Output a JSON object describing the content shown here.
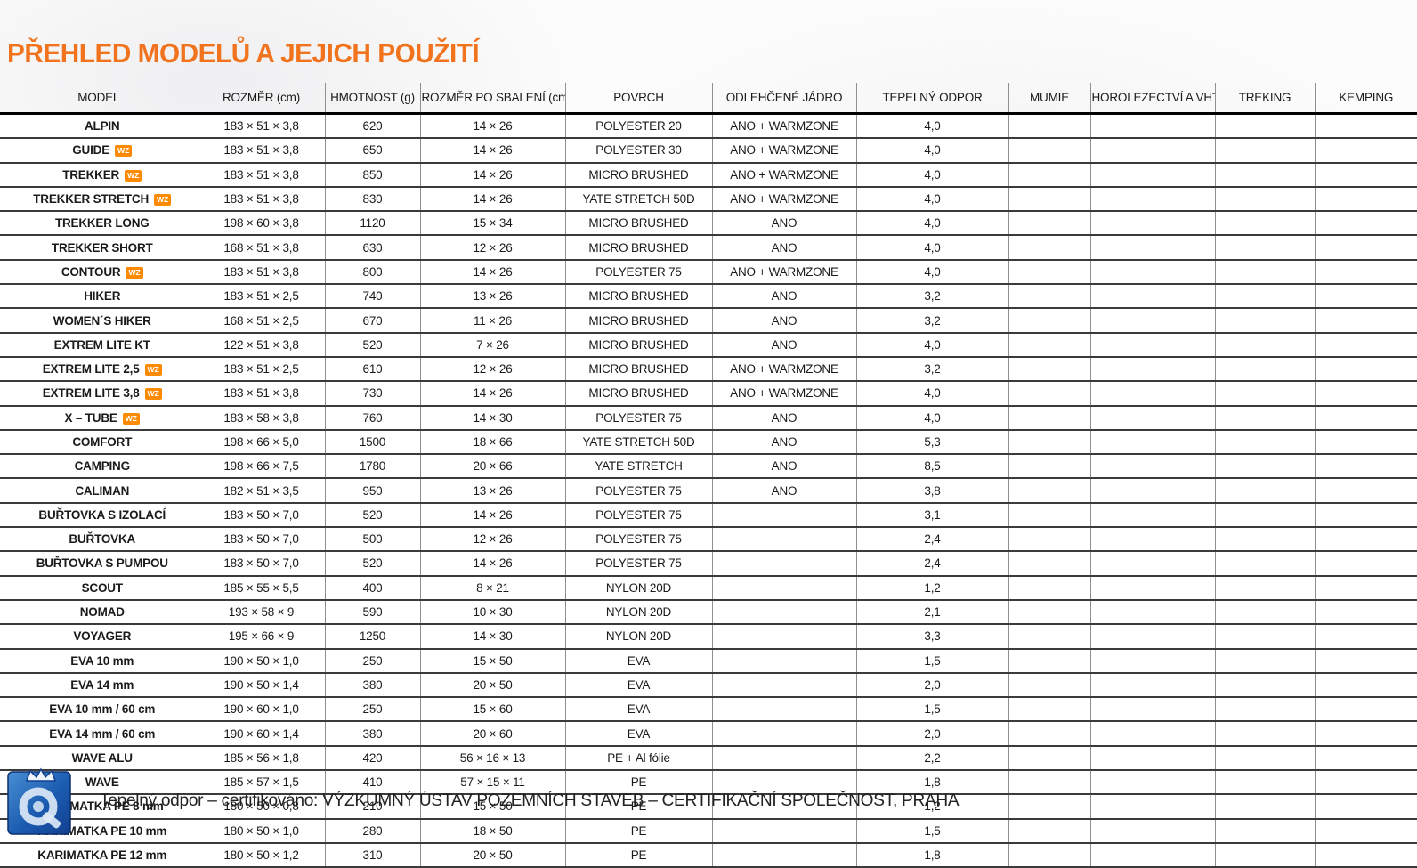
{
  "title": "PŘEHLED MODELŮ A JEJICH POUŽITÍ",
  "colors": {
    "title_orange": "#f2731d",
    "cell_orange": "#fd8a01",
    "row_line": "#3b3b3b",
    "column_line": "#909090",
    "logo_blue_dark": "#123f8f",
    "logo_blue_light": "#4a8fd4"
  },
  "table": {
    "columns": [
      "MODEL",
      "ROZMĚR (cm)",
      "HMOTNOST (g)",
      "ROZMĚR PO SBALENÍ (cm)",
      "POVRCH",
      "ODLEHČENÉ JÁDRO",
      "TEPELNÝ ODPOR",
      "MUMIE",
      "HOROLEZECTVÍ A VHT",
      "TREKING",
      "KEMPING"
    ],
    "wz_badge_label": "WZ",
    "rows": [
      {
        "model": "ALPIN",
        "wz": false,
        "size": "183 × 51 × 3,8",
        "weight": "620",
        "packed": "14 × 26",
        "surface": "POLYESTER 20",
        "core": "ANO + WARMZONE",
        "r_value": "4,0",
        "use": [
          false,
          true,
          true,
          true
        ]
      },
      {
        "model": "GUIDE",
        "wz": true,
        "size": "183 × 51 × 3,8",
        "weight": "650",
        "packed": "14 × 26",
        "surface": "POLYESTER 30",
        "core": "ANO + WARMZONE",
        "r_value": "4,0",
        "use": [
          false,
          true,
          true,
          true
        ]
      },
      {
        "model": "TREKKER",
        "wz": true,
        "size": "183 × 51 × 3,8",
        "weight": "850",
        "packed": "14 × 26",
        "surface": "MICRO BRUSHED",
        "core": "ANO + WARMZONE",
        "r_value": "4,0",
        "use": [
          false,
          true,
          true,
          true
        ]
      },
      {
        "model": "TREKKER STRETCH",
        "wz": true,
        "size": "183 × 51 × 3,8",
        "weight": "830",
        "packed": "14 × 26",
        "surface": "YATE STRETCH 50D",
        "core": "ANO + WARMZONE",
        "r_value": "4,0",
        "use": [
          false,
          true,
          true,
          true
        ]
      },
      {
        "model": "TREKKER LONG",
        "wz": false,
        "size": "198 × 60 × 3,8",
        "weight": "1120",
        "packed": "15 × 34",
        "surface": "MICRO BRUSHED",
        "core": "ANO",
        "r_value": "4,0",
        "use": [
          false,
          true,
          true,
          true
        ]
      },
      {
        "model": "TREKKER SHORT",
        "wz": false,
        "size": "168 × 51 × 3,8",
        "weight": "630",
        "packed": "12 × 26",
        "surface": "MICRO BRUSHED",
        "core": "ANO",
        "r_value": "4,0",
        "use": [
          false,
          true,
          true,
          true
        ]
      },
      {
        "model": "CONTOUR",
        "wz": true,
        "size": "183 × 51 × 3,8",
        "weight": "800",
        "packed": "14 × 26",
        "surface": "POLYESTER 75",
        "core": "ANO + WARMZONE",
        "r_value": "4,0",
        "use": [
          false,
          true,
          true,
          true
        ]
      },
      {
        "model": "HIKER",
        "wz": false,
        "size": "183 × 51 × 2,5",
        "weight": "740",
        "packed": "13 × 26",
        "surface": "MICRO BRUSHED",
        "core": "ANO",
        "r_value": "3,2",
        "use": [
          false,
          true,
          true,
          true
        ]
      },
      {
        "model": "WOMEN´S HIKER",
        "wz": false,
        "size": "168 × 51 × 2,5",
        "weight": "670",
        "packed": "11 × 26",
        "surface": "MICRO BRUSHED",
        "core": "ANO",
        "r_value": "3,2",
        "use": [
          false,
          true,
          true,
          true
        ]
      },
      {
        "model": "EXTREM LITE KT",
        "wz": false,
        "size": "122 × 51 × 3,8",
        "weight": "520",
        "packed": "7 × 26",
        "surface": "MICRO BRUSHED",
        "core": "ANO",
        "r_value": "4,0",
        "use": [
          false,
          true,
          true,
          false
        ]
      },
      {
        "model": "EXTREM LITE 2,5",
        "wz": true,
        "size": "183 × 51 × 2,5",
        "weight": "610",
        "packed": "12 × 26",
        "surface": "MICRO BRUSHED",
        "core": "ANO + WARMZONE",
        "r_value": "3,2",
        "use": [
          true,
          true,
          true,
          false
        ]
      },
      {
        "model": "EXTREM LITE 3,8",
        "wz": true,
        "size": "183 × 51 × 3,8",
        "weight": "730",
        "packed": "14 × 26",
        "surface": "MICRO BRUSHED",
        "core": "ANO + WARMZONE",
        "r_value": "4,0",
        "use": [
          true,
          true,
          true,
          false
        ]
      },
      {
        "model": "X – TUBE",
        "wz": true,
        "size": "183 × 58 × 3,8",
        "weight": "760",
        "packed": "14 × 30",
        "surface": "POLYESTER 75",
        "core": "ANO",
        "r_value": "4,0",
        "use": [
          true,
          true,
          true,
          false
        ]
      },
      {
        "model": "COMFORT",
        "wz": false,
        "size": "198 × 66 × 5,0",
        "weight": "1500",
        "packed": "18 × 66",
        "surface": "YATE STRETCH 50D",
        "core": "ANO",
        "r_value": "5,3",
        "use": [
          false,
          false,
          false,
          true
        ]
      },
      {
        "model": "CAMPING",
        "wz": false,
        "size": "198 × 66 × 7,5",
        "weight": "1780",
        "packed": "20 × 66",
        "surface": "YATE STRETCH",
        "core": "ANO",
        "r_value": "8,5",
        "use": [
          false,
          false,
          false,
          true
        ]
      },
      {
        "model": "CALIMAN",
        "wz": false,
        "size": "182 × 51 × 3,5",
        "weight": "950",
        "packed": "13 × 26",
        "surface": "POLYESTER 75",
        "core": "ANO",
        "r_value": "3,8",
        "use": [
          false,
          false,
          true,
          true
        ]
      },
      {
        "model": "BUŘTOVKA S IZOLACÍ",
        "wz": false,
        "size": "183 × 50 × 7,0",
        "weight": "520",
        "packed": "14 × 26",
        "surface": "POLYESTER 75",
        "core": "",
        "r_value": "3,1",
        "use": [
          false,
          true,
          true,
          true
        ]
      },
      {
        "model": "BUŘTOVKA",
        "wz": false,
        "size": "183 × 50 × 7,0",
        "weight": "500",
        "packed": "12 × 26",
        "surface": "POLYESTER 75",
        "core": "",
        "r_value": "2,4",
        "use": [
          false,
          true,
          true,
          true
        ]
      },
      {
        "model": "BUŘTOVKA S PUMPOU",
        "wz": false,
        "size": "183 × 50 × 7,0",
        "weight": "520",
        "packed": "14 × 26",
        "surface": "POLYESTER 75",
        "core": "",
        "r_value": "2,4",
        "use": [
          false,
          true,
          true,
          true
        ]
      },
      {
        "model": "SCOUT",
        "wz": false,
        "size": "185 × 55 × 5,5",
        "weight": "400",
        "packed": "8 × 21",
        "surface": "NYLON 20D",
        "core": "",
        "r_value": "1,2",
        "use": [
          true,
          true,
          true,
          false
        ]
      },
      {
        "model": "NOMAD",
        "wz": false,
        "size": "193 × 58 × 9",
        "weight": "590",
        "packed": "10 × 30",
        "surface": "NYLON 20D",
        "core": "",
        "r_value": "2,1",
        "use": [
          false,
          true,
          true,
          true
        ]
      },
      {
        "model": "VOYAGER",
        "wz": false,
        "size": "195 × 66 × 9",
        "weight": "1250",
        "packed": "14 × 30",
        "surface": "NYLON 20D",
        "core": "",
        "r_value": "3,3",
        "use": [
          false,
          false,
          true,
          true
        ]
      },
      {
        "model": "EVA 10 mm",
        "wz": false,
        "size": "190 × 50 × 1,0",
        "weight": "250",
        "packed": "15 × 50",
        "surface": "EVA",
        "core": "",
        "r_value": "1,5",
        "use": [
          false,
          true,
          true,
          true
        ]
      },
      {
        "model": "EVA 14 mm",
        "wz": false,
        "size": "190 × 50 × 1,4",
        "weight": "380",
        "packed": "20 × 50",
        "surface": "EVA",
        "core": "",
        "r_value": "2,0",
        "use": [
          false,
          true,
          true,
          true
        ]
      },
      {
        "model": "EVA 10 mm / 60 cm",
        "wz": false,
        "size": "190 × 60 × 1,0",
        "weight": "250",
        "packed": "15 × 60",
        "surface": "EVA",
        "core": "",
        "r_value": "1,5",
        "use": [
          false,
          true,
          true,
          false
        ]
      },
      {
        "model": "EVA 14 mm / 60 cm",
        "wz": false,
        "size": "190 × 60 × 1,4",
        "weight": "380",
        "packed": "20 × 60",
        "surface": "EVA",
        "core": "",
        "r_value": "2,0",
        "use": [
          false,
          true,
          true,
          false
        ]
      },
      {
        "model": "WAVE ALU",
        "wz": false,
        "size": "185 × 56 × 1,8",
        "weight": "420",
        "packed": "56 × 16 × 13",
        "surface": "PE + Al fólie",
        "core": "",
        "r_value": "2,2",
        "use": [
          false,
          true,
          true,
          false
        ]
      },
      {
        "model": "WAVE",
        "wz": false,
        "size": "185 × 57 × 1,5",
        "weight": "410",
        "packed": "57 × 15 × 11",
        "surface": "PE",
        "core": "",
        "r_value": "1,8",
        "use": [
          false,
          true,
          true,
          false
        ]
      },
      {
        "model": "KARIMATKA PE 8 mm",
        "wz": false,
        "size": "180 × 50 × 0,8",
        "weight": "210",
        "packed": "15 × 50",
        "surface": "PE",
        "core": "",
        "r_value": "1,2",
        "use": [
          false,
          false,
          true,
          false
        ]
      },
      {
        "model": "KARIMATKA PE 10 mm",
        "wz": false,
        "size": "180 × 50 × 1,0",
        "weight": "280",
        "packed": "18 × 50",
        "surface": "PE",
        "core": "",
        "r_value": "1,5",
        "use": [
          false,
          false,
          true,
          true
        ]
      },
      {
        "model": "KARIMATKA PE 12 mm",
        "wz": false,
        "size": "180 × 50 × 1,2",
        "weight": "310",
        "packed": "20 × 50",
        "surface": "PE",
        "core": "",
        "r_value": "1,8",
        "use": [
          false,
          true,
          true,
          true
        ]
      }
    ]
  },
  "footer": {
    "text": "Tepelný odpor – certifikováno: VÝZKUMNÝ ÚSTAV POZEMNÍCH STAVEB – CERTIFIKAČNÍ SPOLEČNOST, PRAHA",
    "logo": "certification-logo"
  }
}
